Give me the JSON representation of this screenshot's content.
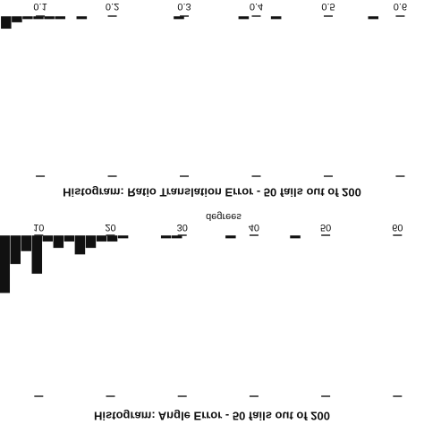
{
  "chart_data": [
    {
      "type": "histogram",
      "title": "Histogram:  Ratio Translation Error - 50 fails out of 200",
      "bins": [
        0.045,
        0.06,
        0.075,
        0.09,
        0.105,
        0.12,
        0.135,
        0.15,
        0.165,
        0.18,
        0.195,
        0.21,
        0.225,
        0.24,
        0.255,
        0.27,
        0.285,
        0.3,
        0.315,
        0.33,
        0.345,
        0.36,
        0.375,
        0.39,
        0.405,
        0.42,
        0.435,
        0.45,
        0.465,
        0.48,
        0.495,
        0.51,
        0.525,
        0.54,
        0.555,
        0.57,
        0.585,
        0.6,
        0.615,
        0.63
      ],
      "values": [
        4,
        2,
        1,
        1,
        1,
        1,
        0,
        1,
        0,
        0,
        0,
        0,
        0,
        0,
        0,
        0,
        1,
        0,
        0,
        0,
        0,
        0,
        1,
        0,
        0,
        1,
        0,
        0,
        0,
        0,
        0,
        0,
        0,
        0,
        1,
        0,
        0,
        0,
        0
      ],
      "color": "#111111",
      "xlim": [
        0.044,
        0.633
      ],
      "xticks": [
        0.1,
        0.2,
        0.3,
        0.4,
        0.5,
        0.6
      ],
      "ylim": [
        0,
        50
      ]
    },
    {
      "type": "histogram",
      "title": "Histogram:  Angle Error - 50 fails out of 200",
      "x_label": "degrees",
      "bins": [
        4.5,
        6,
        7.5,
        9,
        10.5,
        12,
        13.5,
        15,
        16.5,
        18,
        19.5,
        21,
        22.5,
        24,
        25.5,
        27,
        28.5,
        30,
        31.5,
        33,
        34.5,
        36,
        37.5,
        39,
        40.5,
        42,
        43.5,
        45,
        46.5,
        48
      ],
      "values": [
        18,
        9,
        5,
        12,
        2,
        4,
        2,
        6,
        4,
        2,
        2,
        1,
        0,
        0,
        0,
        1,
        1,
        0,
        0,
        0,
        0,
        1,
        0,
        0,
        0,
        0,
        0,
        1,
        0
      ],
      "color": "#111111",
      "xlim": [
        4.6,
        63.7
      ],
      "xticks": [
        10,
        20,
        30,
        40,
        50,
        60
      ],
      "ylim": [
        0,
        50
      ]
    }
  ]
}
